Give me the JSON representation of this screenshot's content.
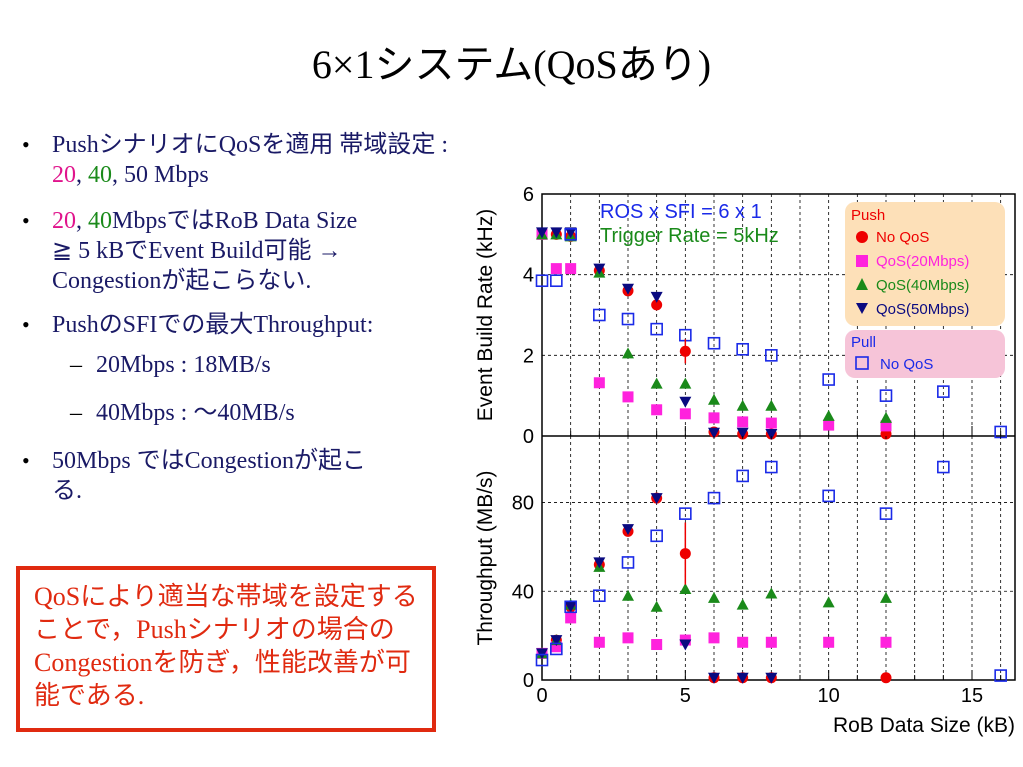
{
  "slide": {
    "title": "6×1システム(QoSあり)",
    "bullet1": {
      "a": "Pushシナリオに",
      "b": "QoSを適用 帯域設定 : ",
      "v1": "20",
      ",1": ", ",
      "v2": "40",
      "rest": ", 50 Mbps"
    },
    "bullet2": {
      "v1": "20",
      ",": ", ",
      "v2": "40",
      "rest1": "MbpsではRoB Data Size",
      "rest2": "≧ 5 kBでEvent Build可能 →",
      "rest3": "Congestionが起こらない."
    },
    "bullet3": "PushのSFIでの最大Throughput:",
    "sub1": "20Mbps : 18MB/s",
    "sub2": "40Mbps : ～40MB/s",
    "bullet4a": "50Mbps ではCongestionが起こ",
    "bullet4b": "る.",
    "callout": "QoSにより適当な帯域を設定することで，Pushシナリオの場合のCongestionを防ぎ，性能改善が可能である."
  },
  "chart_data": {
    "type": "scatter",
    "annotation1": "ROS x SFI = 6 x 1",
    "annotation2": "Trigger Rate = 5kHz",
    "xlabel": "RoB Data Size (kB)",
    "xlim": [
      0,
      16.5
    ],
    "xticks": [
      "0",
      "5",
      "10",
      "15"
    ],
    "legend_push_title": "Push",
    "legend_pull_title": "Pull",
    "panels": [
      {
        "ylabel": "Event Build Rate (kHz)",
        "ylim": [
          0,
          6
        ],
        "yticks": [
          "0",
          "2",
          "4",
          "6"
        ],
        "series": [
          {
            "name": "No QoS",
            "marker": "circle",
            "color": "#ee0000",
            "points": [
              [
                0,
                5.0
              ],
              [
                0.5,
                5.0
              ],
              [
                1,
                4.95
              ],
              [
                2,
                4.1
              ],
              [
                3,
                3.6
              ],
              [
                4,
                3.25
              ],
              [
                5,
                2.1
              ],
              [
                6,
                0.1
              ],
              [
                7,
                0.05
              ],
              [
                8,
                0.05
              ],
              [
                12,
                0.05
              ]
            ]
          },
          {
            "name": "QoS(20Mbps)",
            "marker": "square",
            "color": "#ff22dd",
            "points": [
              [
                0,
                5.0
              ],
              [
                0.5,
                4.15
              ],
              [
                1,
                4.15
              ],
              [
                2,
                1.32
              ],
              [
                3,
                0.97
              ],
              [
                4,
                0.65
              ],
              [
                5,
                0.55
              ],
              [
                6,
                0.45
              ],
              [
                7,
                0.35
              ],
              [
                8,
                0.32
              ],
              [
                10,
                0.27
              ],
              [
                12,
                0.25
              ]
            ]
          },
          {
            "name": "QoS(40Mbps)",
            "marker": "triangle-up",
            "color": "#1a8a1a",
            "points": [
              [
                0,
                5.0
              ],
              [
                0.5,
                5.0
              ],
              [
                1,
                4.95
              ],
              [
                2,
                4.05
              ],
              [
                3,
                2.05
              ],
              [
                4,
                1.3
              ],
              [
                5,
                1.3
              ],
              [
                6,
                0.9
              ],
              [
                7,
                0.75
              ],
              [
                8,
                0.75
              ],
              [
                10,
                0.5
              ],
              [
                12,
                0.45
              ]
            ]
          },
          {
            "name": "QoS(50Mbps)",
            "marker": "triangle-down",
            "color": "#0a0a80",
            "points": [
              [
                0,
                5.05
              ],
              [
                0.5,
                5.05
              ],
              [
                1,
                5.05
              ],
              [
                2,
                4.15
              ],
              [
                3,
                3.65
              ],
              [
                4,
                3.45
              ],
              [
                5,
                0.85
              ],
              [
                6,
                0.08
              ],
              [
                7,
                0.08
              ],
              [
                8,
                0.05
              ]
            ]
          },
          {
            "name": "No QoS",
            "marker": "open-square",
            "color": "#1a2ae8",
            "points": [
              [
                0,
                3.85
              ],
              [
                0.5,
                3.85
              ],
              [
                1,
                5.0
              ],
              [
                2,
                3.0
              ],
              [
                3,
                2.9
              ],
              [
                4,
                2.65
              ],
              [
                5,
                2.5
              ],
              [
                6,
                2.3
              ],
              [
                7,
                2.15
              ],
              [
                8,
                2.0
              ],
              [
                10,
                1.4
              ],
              [
                12,
                1.0
              ],
              [
                14,
                1.1
              ],
              [
                16,
                0.1
              ]
            ]
          }
        ]
      },
      {
        "ylabel": "Throughput (MB/s)",
        "ylim": [
          0,
          110
        ],
        "yticks": [
          "0",
          "40",
          "80"
        ],
        "series": [
          {
            "name": "No QoS",
            "marker": "circle",
            "color": "#ee0000",
            "points": [
              [
                0,
                12
              ],
              [
                0.5,
                18
              ],
              [
                1,
                33
              ],
              [
                2,
                52
              ],
              [
                3,
                67
              ],
              [
                4,
                82
              ],
              [
                5,
                57
              ],
              [
                6,
                1
              ],
              [
                7,
                1
              ],
              [
                8,
                1
              ],
              [
                12,
                1
              ]
            ]
          },
          {
            "name": "QoS(20Mbps)",
            "marker": "square",
            "color": "#ff22dd",
            "points": [
              [
                0,
                12
              ],
              [
                0.5,
                15
              ],
              [
                1,
                28
              ],
              [
                2,
                17
              ],
              [
                3,
                19
              ],
              [
                4,
                16
              ],
              [
                5,
                18
              ],
              [
                6,
                19
              ],
              [
                7,
                17
              ],
              [
                8,
                17
              ],
              [
                10,
                17
              ],
              [
                12,
                17
              ]
            ]
          },
          {
            "name": "QoS(40Mbps)",
            "marker": "triangle-up",
            "color": "#1a8a1a",
            "points": [
              [
                0,
                12
              ],
              [
                0.5,
                18
              ],
              [
                1,
                34
              ],
              [
                2,
                51
              ],
              [
                3,
                38
              ],
              [
                4,
                33
              ],
              [
                5,
                41
              ],
              [
                6,
                37
              ],
              [
                7,
                34
              ],
              [
                8,
                39
              ],
              [
                10,
                35
              ],
              [
                12,
                37
              ]
            ]
          },
          {
            "name": "QoS(50Mbps)",
            "marker": "triangle-down",
            "color": "#0a0a80",
            "points": [
              [
                0,
                12
              ],
              [
                0.5,
                18
              ],
              [
                1,
                33
              ],
              [
                2,
                53
              ],
              [
                3,
                68
              ],
              [
                4,
                82
              ],
              [
                5,
                16
              ],
              [
                6,
                1
              ],
              [
                7,
                1
              ],
              [
                8,
                1
              ]
            ]
          },
          {
            "name": "No QoS",
            "marker": "open-square",
            "color": "#1a2ae8",
            "points": [
              [
                0,
                9
              ],
              [
                0.5,
                14
              ],
              [
                1,
                33
              ],
              [
                2,
                38
              ],
              [
                3,
                53
              ],
              [
                4,
                65
              ],
              [
                5,
                75
              ],
              [
                6,
                82
              ],
              [
                7,
                92
              ],
              [
                8,
                96
              ],
              [
                10,
                83
              ],
              [
                12,
                75
              ],
              [
                14,
                96
              ],
              [
                16,
                2
              ]
            ]
          }
        ]
      }
    ]
  }
}
